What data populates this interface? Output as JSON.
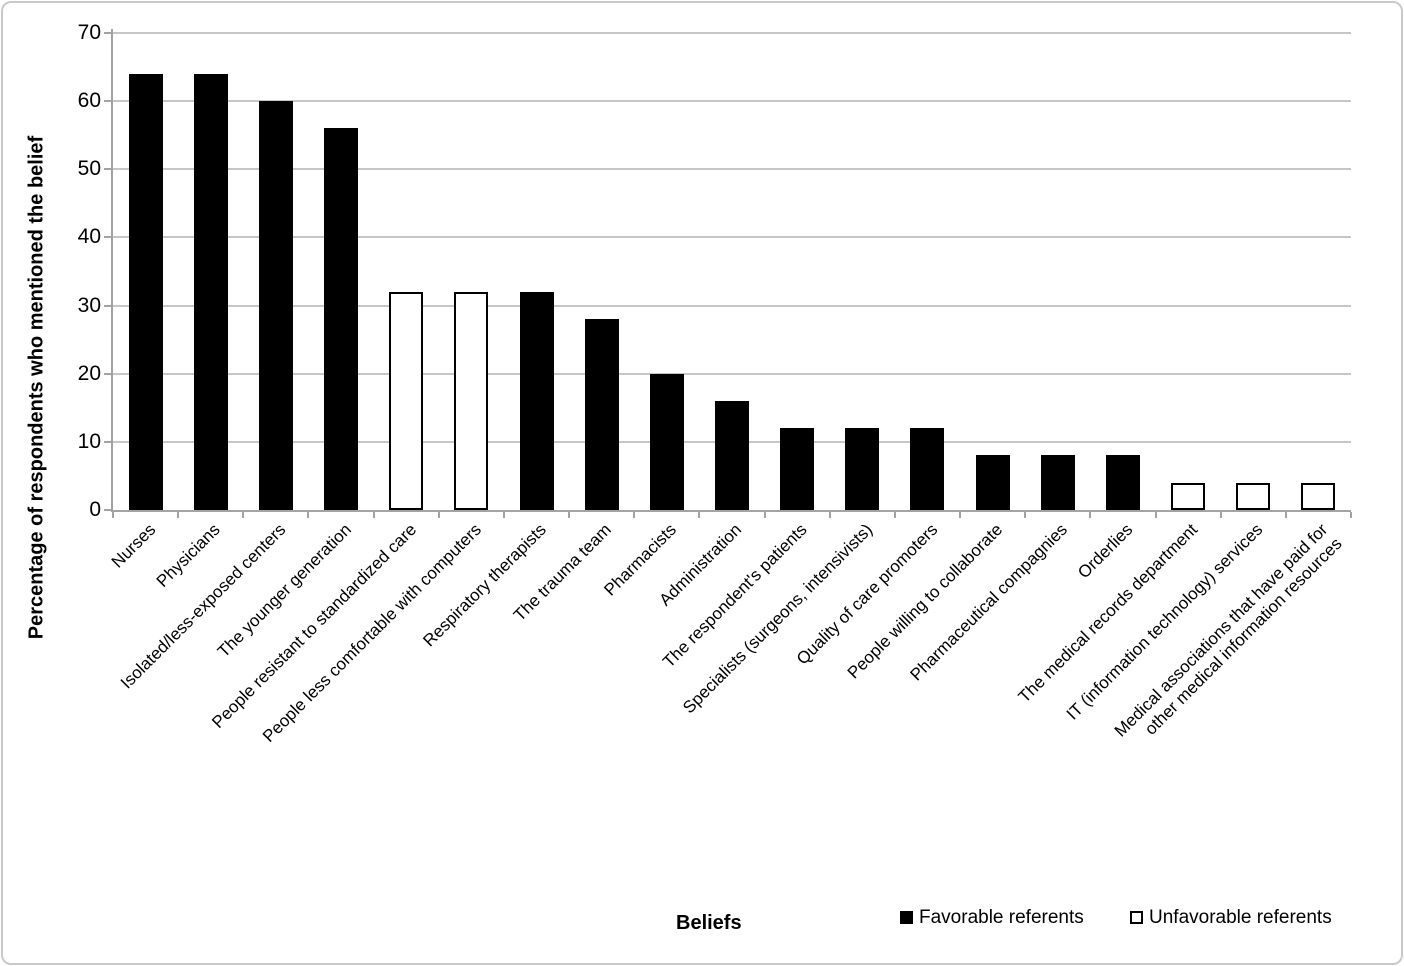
{
  "figure": {
    "background": "#ffffff",
    "border_color": "#c9c9c9"
  },
  "chart_data": {
    "type": "bar",
    "title": "",
    "xlabel": "Beliefs",
    "ylabel": "Percentage of respondents who mentioned the belief",
    "ylim": [
      0,
      70
    ],
    "yticks": [
      0,
      10,
      20,
      30,
      40,
      50,
      60,
      70
    ],
    "grid": true,
    "legend_position": "bottom",
    "legend": [
      {
        "label": "Favorable referents",
        "fill": "#000000",
        "border": "#000000"
      },
      {
        "label": "Unfavorable referents",
        "fill": "#ffffff",
        "border": "#000000"
      }
    ],
    "bars": [
      {
        "category": "Nurses",
        "value": 64,
        "series": "Favorable referents"
      },
      {
        "category": "Physicians",
        "value": 64,
        "series": "Favorable referents"
      },
      {
        "category": "Isolated/less-exposed centers",
        "value": 60,
        "series": "Favorable referents"
      },
      {
        "category": "The younger generation",
        "value": 56,
        "series": "Favorable referents"
      },
      {
        "category": "People resistant to standardized care",
        "value": 32,
        "series": "Unfavorable referents"
      },
      {
        "category": "People less comfortable with computers",
        "value": 32,
        "series": "Unfavorable referents"
      },
      {
        "category": "Respiratory therapists",
        "value": 32,
        "series": "Favorable referents"
      },
      {
        "category": "The trauma team",
        "value": 28,
        "series": "Favorable referents"
      },
      {
        "category": "Pharmacists",
        "value": 20,
        "series": "Favorable referents"
      },
      {
        "category": "Administration",
        "value": 16,
        "series": "Favorable referents"
      },
      {
        "category": "The respondent's patients",
        "value": 12,
        "series": "Favorable referents"
      },
      {
        "category": "Specialists (surgeons, intensivists)",
        "value": 12,
        "series": "Favorable referents"
      },
      {
        "category": "Quality of care promoters",
        "value": 12,
        "series": "Favorable referents"
      },
      {
        "category": "People willing to collaborate",
        "value": 8,
        "series": "Favorable referents"
      },
      {
        "category": "Pharmaceutical compagnies",
        "value": 8,
        "series": "Favorable referents"
      },
      {
        "category": "Orderlies",
        "value": 8,
        "series": "Favorable referents"
      },
      {
        "category": "The medical records department",
        "value": 4,
        "series": "Unfavorable referents"
      },
      {
        "category": "IT (information technology) services",
        "value": 4,
        "series": "Unfavorable referents"
      },
      {
        "category": "Medical associations that have paid for\nother medical information resources",
        "value": 4,
        "series": "Unfavorable referents"
      }
    ]
  }
}
